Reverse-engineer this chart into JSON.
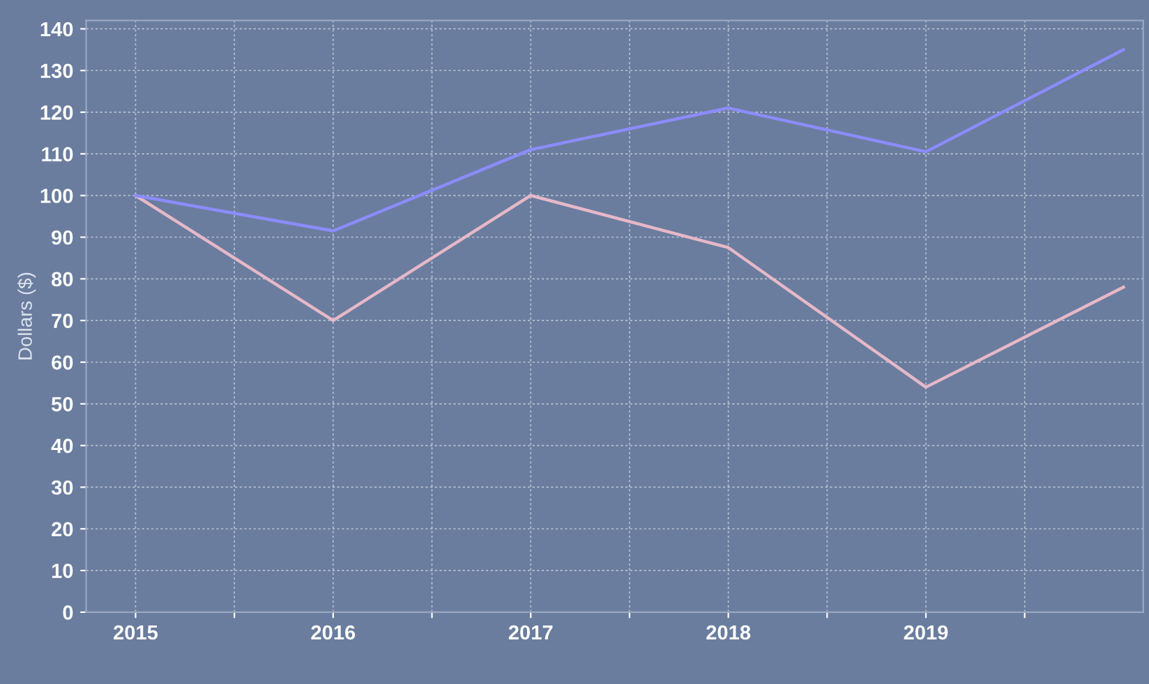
{
  "chart_data": {
    "type": "line",
    "ylabel": "Dollars ($)",
    "x": [
      2015,
      2016,
      2017,
      2018,
      2019,
      2020
    ],
    "series": [
      {
        "color": "#e6b8c8",
        "values": [
          100,
          70,
          100,
          87.5,
          54,
          78
        ]
      },
      {
        "color": "#8c8cff",
        "values": [
          100,
          91.5,
          111,
          121,
          110.5,
          135
        ]
      }
    ],
    "xlim": [
      2014.75,
      2020.1
    ],
    "ylim": [
      0,
      142
    ],
    "xticks": [
      2015,
      {
        "value": 2015.5,
        "label": null
      },
      2016,
      {
        "value": 2016.5,
        "label": null
      },
      2017,
      {
        "value": 2017.5,
        "label": null
      },
      2018,
      {
        "value": 2018.5,
        "label": null
      },
      2019,
      {
        "value": 2019.5,
        "label": null
      }
    ],
    "yticks": [
      0,
      10,
      20,
      30,
      40,
      50,
      60,
      70,
      80,
      90,
      100,
      110,
      120,
      130,
      140
    ],
    "grid": true,
    "marker": "none",
    "line_style": "solid"
  }
}
